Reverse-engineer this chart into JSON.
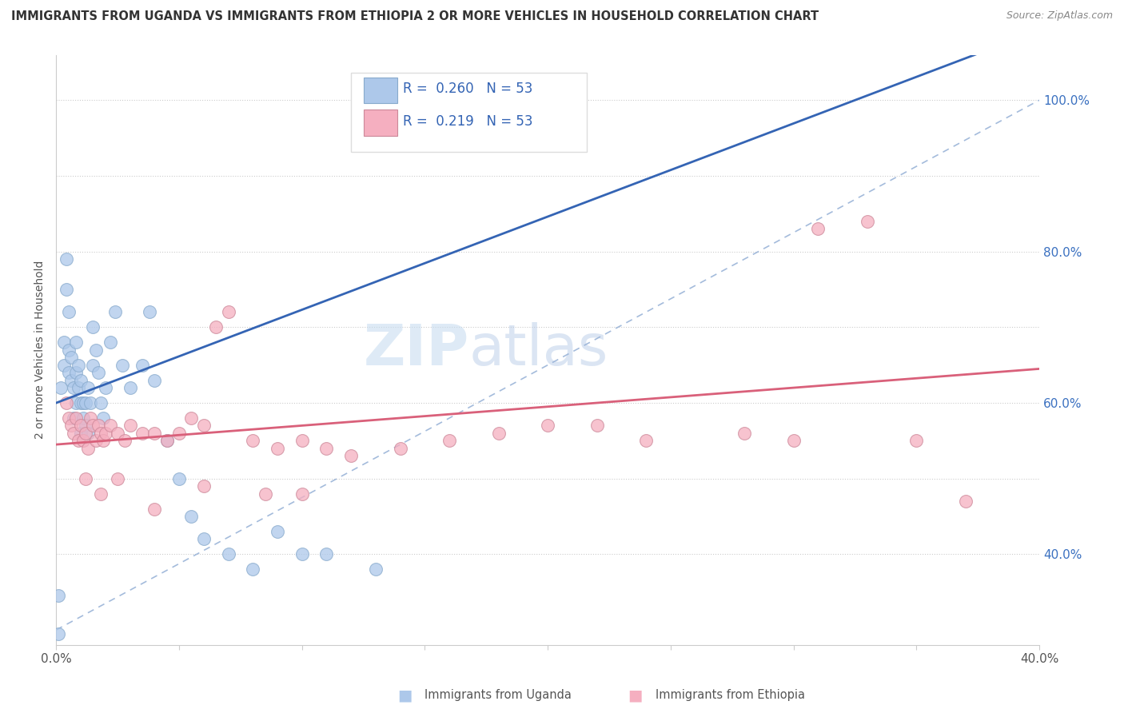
{
  "title": "IMMIGRANTS FROM UGANDA VS IMMIGRANTS FROM ETHIOPIA 2 OR MORE VEHICLES IN HOUSEHOLD CORRELATION CHART",
  "source": "Source: ZipAtlas.com",
  "ylabel": "2 or more Vehicles in Household",
  "xlim": [
    0.0,
    0.4
  ],
  "ylim": [
    0.28,
    1.06
  ],
  "uganda_R": 0.26,
  "ethiopia_R": 0.219,
  "uganda_N": 53,
  "ethiopia_N": 53,
  "uganda_color": "#adc8ea",
  "ethiopia_color": "#f5afc0",
  "uganda_line_color": "#3464b4",
  "ethiopia_line_color": "#d9607a",
  "ref_line_color": "#9ab4d8",
  "watermark_color": "#c8ddf0",
  "uganda_x": [
    0.001,
    0.002,
    0.003,
    0.003,
    0.004,
    0.004,
    0.005,
    0.005,
    0.005,
    0.006,
    0.006,
    0.007,
    0.007,
    0.008,
    0.008,
    0.008,
    0.009,
    0.009,
    0.01,
    0.01,
    0.01,
    0.011,
    0.011,
    0.012,
    0.012,
    0.013,
    0.013,
    0.014,
    0.015,
    0.015,
    0.016,
    0.017,
    0.018,
    0.019,
    0.02,
    0.022,
    0.024,
    0.027,
    0.03,
    0.035,
    0.038,
    0.04,
    0.045,
    0.05,
    0.055,
    0.06,
    0.07,
    0.08,
    0.09,
    0.1,
    0.11,
    0.13,
    0.001
  ],
  "uganda_y": [
    0.345,
    0.62,
    0.65,
    0.68,
    0.75,
    0.79,
    0.64,
    0.67,
    0.72,
    0.63,
    0.66,
    0.62,
    0.58,
    0.6,
    0.64,
    0.68,
    0.62,
    0.65,
    0.6,
    0.56,
    0.63,
    0.6,
    0.58,
    0.57,
    0.6,
    0.56,
    0.62,
    0.6,
    0.65,
    0.7,
    0.67,
    0.64,
    0.6,
    0.58,
    0.62,
    0.68,
    0.72,
    0.65,
    0.62,
    0.65,
    0.72,
    0.63,
    0.55,
    0.5,
    0.45,
    0.42,
    0.4,
    0.38,
    0.43,
    0.4,
    0.4,
    0.38,
    0.295
  ],
  "ethiopia_x": [
    0.004,
    0.005,
    0.006,
    0.007,
    0.008,
    0.009,
    0.01,
    0.011,
    0.012,
    0.013,
    0.014,
    0.015,
    0.016,
    0.017,
    0.018,
    0.019,
    0.02,
    0.022,
    0.025,
    0.028,
    0.03,
    0.035,
    0.04,
    0.045,
    0.05,
    0.055,
    0.06,
    0.065,
    0.07,
    0.08,
    0.09,
    0.1,
    0.11,
    0.12,
    0.14,
    0.16,
    0.18,
    0.2,
    0.22,
    0.24,
    0.28,
    0.3,
    0.31,
    0.33,
    0.35,
    0.37,
    0.012,
    0.018,
    0.025,
    0.04,
    0.06,
    0.085,
    0.1
  ],
  "ethiopia_y": [
    0.6,
    0.58,
    0.57,
    0.56,
    0.58,
    0.55,
    0.57,
    0.55,
    0.56,
    0.54,
    0.58,
    0.57,
    0.55,
    0.57,
    0.56,
    0.55,
    0.56,
    0.57,
    0.56,
    0.55,
    0.57,
    0.56,
    0.56,
    0.55,
    0.56,
    0.58,
    0.57,
    0.7,
    0.72,
    0.55,
    0.54,
    0.55,
    0.54,
    0.53,
    0.54,
    0.55,
    0.56,
    0.57,
    0.57,
    0.55,
    0.56,
    0.55,
    0.83,
    0.84,
    0.55,
    0.47,
    0.5,
    0.48,
    0.5,
    0.46,
    0.49,
    0.48,
    0.48
  ]
}
